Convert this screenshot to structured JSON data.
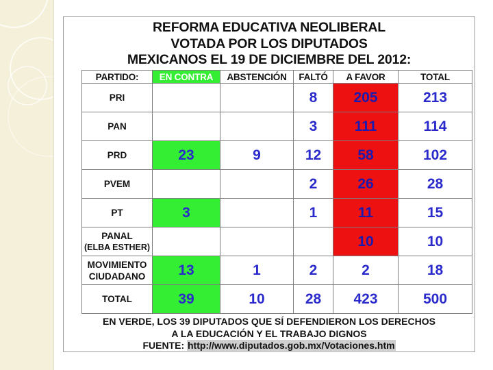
{
  "title": {
    "line1": "REFORMA EDUCATIVA NEOLIBERAL",
    "line2": "VOTADA POR LOS DIPUTADOS",
    "line3": "MEXICANOS EL 19 DE DICIEMBRE DEL 2012:"
  },
  "table": {
    "headers": {
      "partido": "PARTIDO:",
      "en_contra": "EN CONTRA",
      "abstencion": "ABSTENCIÓN",
      "falto": "FALTÓ",
      "a_favor": "A FAVOR",
      "total": "TOTAL"
    },
    "rows": [
      {
        "party": "PRI",
        "party_sub": "",
        "en_contra": "",
        "abstencion": "",
        "falto": "8",
        "a_favor": "205",
        "total": "213"
      },
      {
        "party": "PAN",
        "party_sub": "",
        "en_contra": "",
        "abstencion": "",
        "falto": "3",
        "a_favor": "111",
        "total": "114"
      },
      {
        "party": "PRD",
        "party_sub": "",
        "en_contra": "23",
        "abstencion": "9",
        "falto": "12",
        "a_favor": "58",
        "total": "102"
      },
      {
        "party": "PVEM",
        "party_sub": "",
        "en_contra": "",
        "abstencion": "",
        "falto": "2",
        "a_favor": "26",
        "total": "28"
      },
      {
        "party": "PT",
        "party_sub": "",
        "en_contra": "3",
        "abstencion": "",
        "falto": "1",
        "a_favor": "11",
        "total": "15"
      },
      {
        "party": "PANAL",
        "party_sub": "(ELBA ESTHER)",
        "en_contra": "",
        "abstencion": "",
        "falto": "",
        "a_favor": "10",
        "total": "10"
      },
      {
        "party": "MOVIMIENTO",
        "party_sub": "CIUDADANO",
        "en_contra": "13",
        "abstencion": "1",
        "falto": "2",
        "a_favor": "2",
        "total": "18"
      },
      {
        "party": "TOTAL",
        "party_sub": "",
        "en_contra": "39",
        "abstencion": "10",
        "falto": "28",
        "a_favor": "423",
        "total": "500"
      }
    ]
  },
  "footer": {
    "line1": "EN VERDE, LOS 39 DIPUTADOS QUE SÍ DEFENDIERON LOS DERECHOS",
    "line2": "A LA EDUCACIÓN Y EL TRABAJO DIGNOS",
    "source_label": "FUENTE: ",
    "source_url": "http://www.diputados.gob.mx/Votaciones.htm"
  },
  "colors": {
    "en_contra_highlight": "#33ee33",
    "a_favor_highlight": "#ee1111",
    "number_text": "#2a2acc",
    "slide_band": "#f5f0d9"
  }
}
